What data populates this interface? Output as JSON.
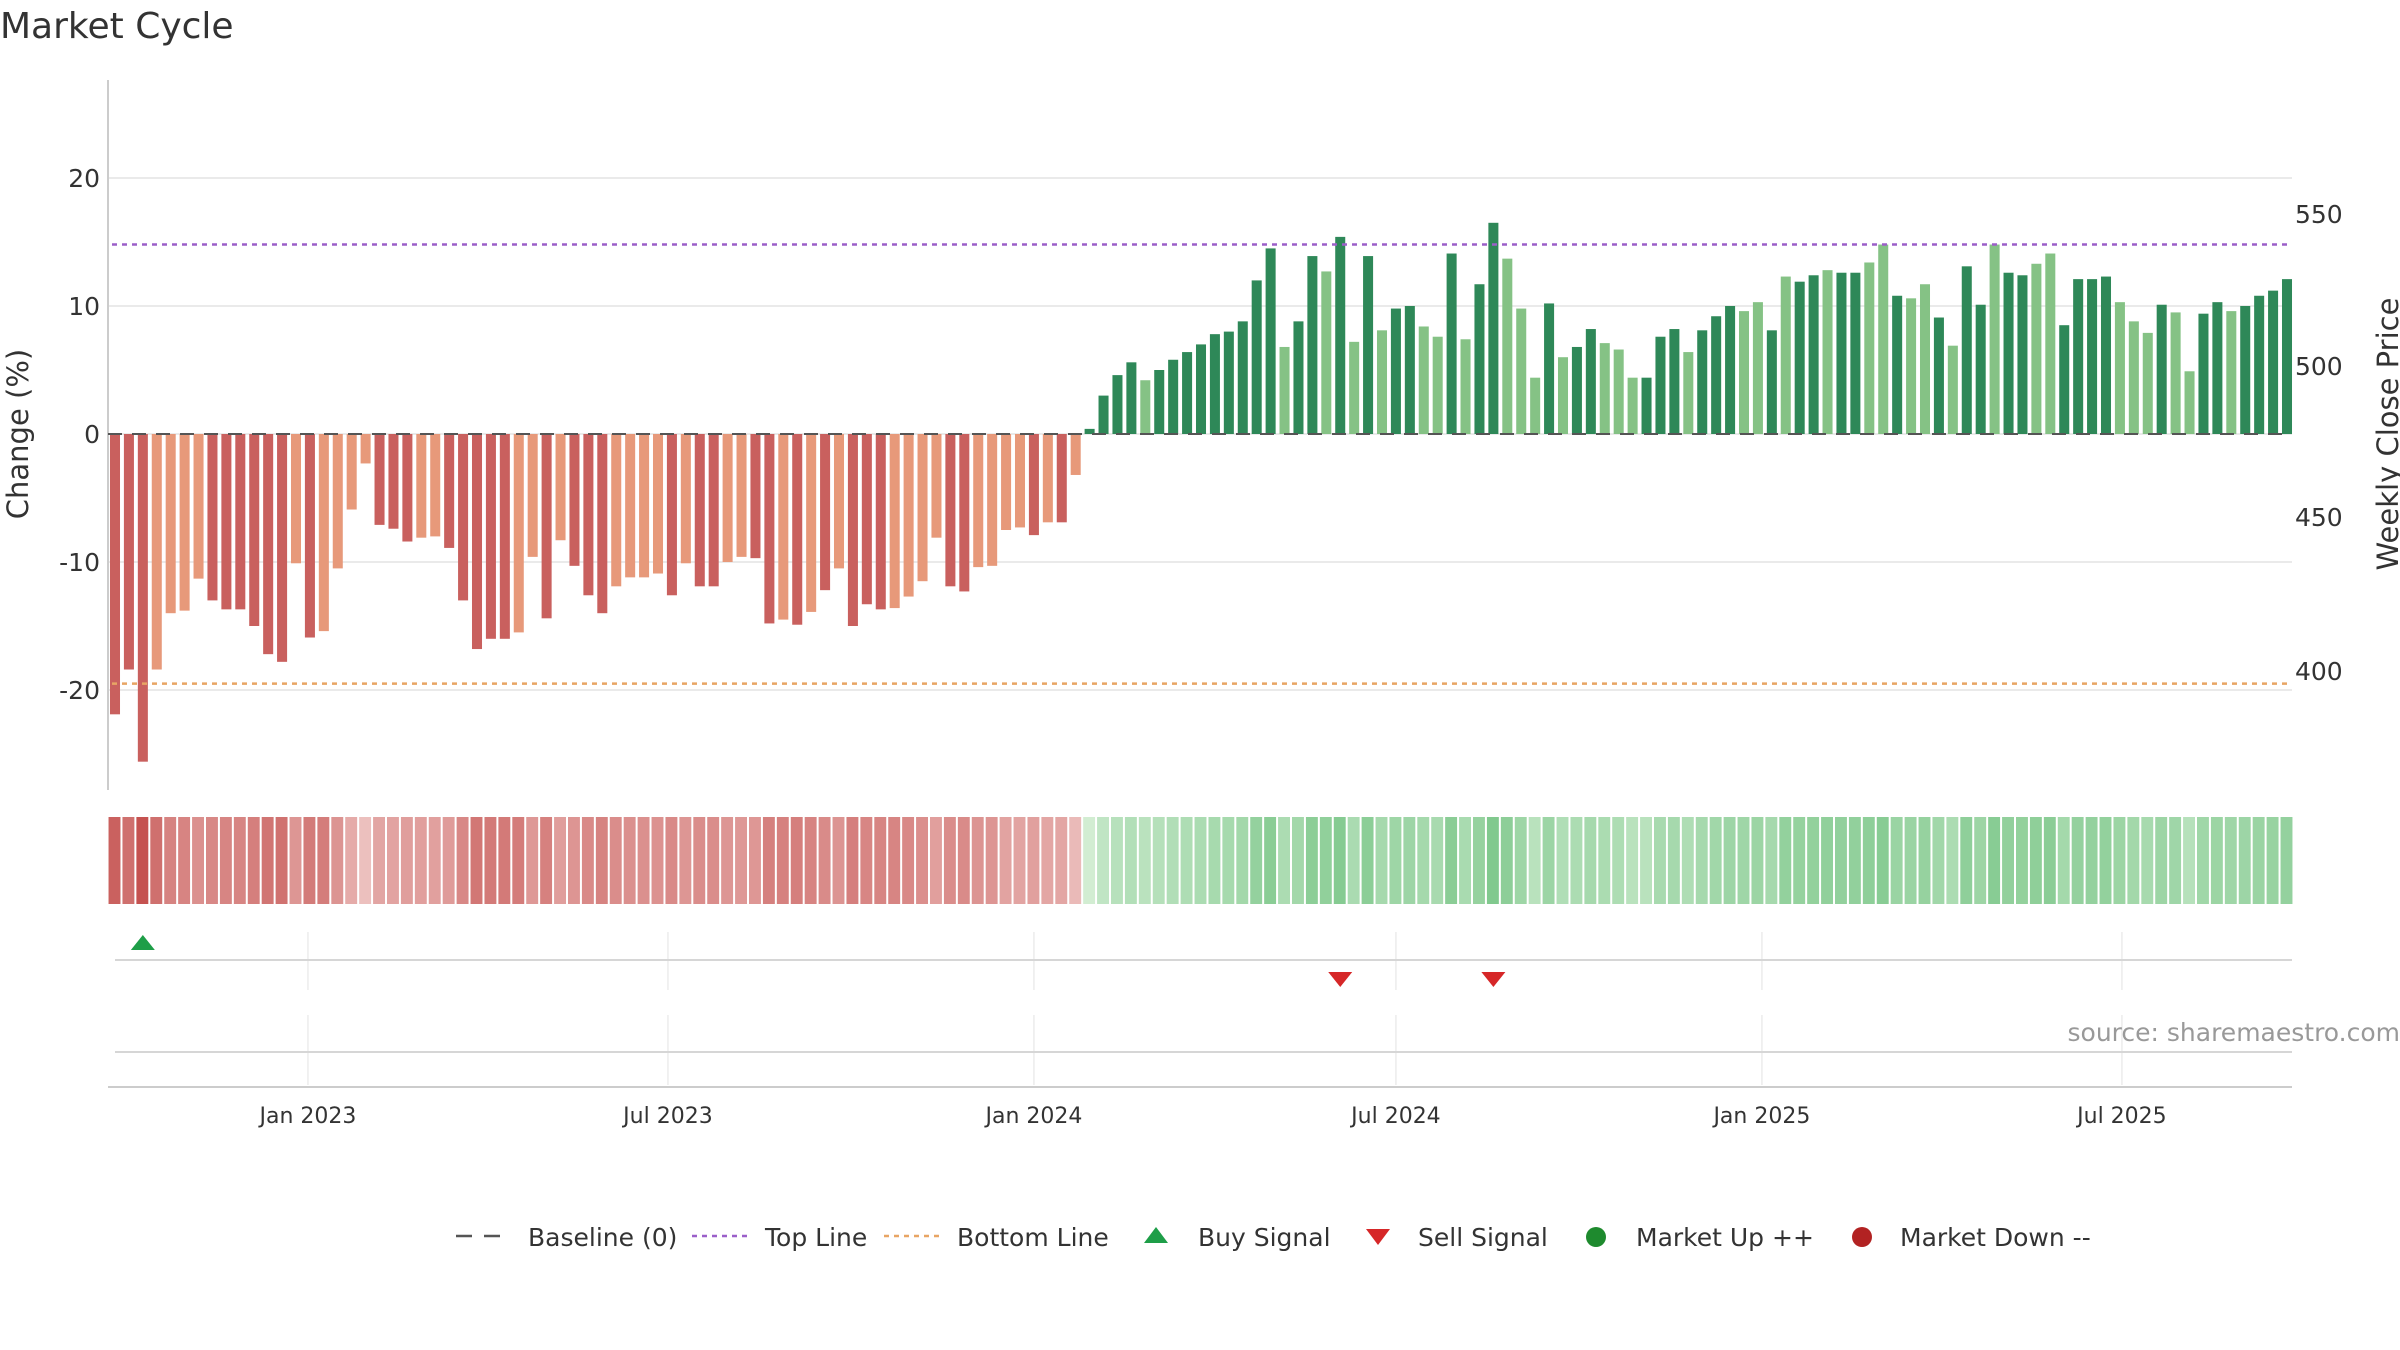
{
  "title": "Market Cycle",
  "source": "source: sharemaestro.com",
  "colors": {
    "down_dark": "#c9605e",
    "down_light": "#e7997a",
    "up_dark": "#2e8858",
    "up_light": "#85c285",
    "top_line": "#9b5fc9",
    "bottom_line": "#e8a564",
    "baseline": "#555555",
    "buy": "#1e9e48",
    "sell": "#d62728",
    "market_up": "#1e8a2e",
    "market_down": "#b22222"
  },
  "chart_data": {
    "type": "bar",
    "title": "Market Cycle",
    "ylabel": "Change (%)",
    "y2label": "Weekly Close Price",
    "ylim": [
      -27.5,
      28
    ],
    "y_ticks": [
      -20,
      -10,
      0,
      10,
      20
    ],
    "y2_ticks": [
      400,
      450,
      500,
      550
    ],
    "y2_tick_values_at_change": [
      -18.5,
      -6.5,
      5.3,
      17.2
    ],
    "top_line": 14.8,
    "bottom_line": -19.5,
    "x_start": "2022-09-26",
    "x_tick_labels": [
      "Jan 2023",
      "Jul 2023",
      "Jan 2024",
      "Jul 2024",
      "Jan 2025",
      "Jul 2025"
    ],
    "x_tick_dates": [
      "2023-01-01",
      "2023-07-01",
      "2024-01-01",
      "2024-07-01",
      "2025-01-01",
      "2025-07-01"
    ],
    "values": [
      -21.9,
      -18.4,
      -25.6,
      -18.4,
      -14.0,
      -13.8,
      -11.3,
      -13.0,
      -13.7,
      -13.7,
      -15.0,
      -17.2,
      -17.8,
      -10.1,
      -15.9,
      -15.4,
      -10.5,
      -5.9,
      -2.3,
      -7.1,
      -7.4,
      -8.4,
      -8.1,
      -8.0,
      -8.9,
      -13.0,
      -16.8,
      -16.0,
      -16.0,
      -15.5,
      -9.6,
      -14.4,
      -8.3,
      -10.3,
      -12.6,
      -14.0,
      -11.9,
      -11.2,
      -11.2,
      -10.9,
      -12.6,
      -10.1,
      -11.9,
      -11.9,
      -10.0,
      -9.6,
      -9.7,
      -14.8,
      -14.5,
      -14.9,
      -13.9,
      -12.2,
      -10.5,
      -15.0,
      -13.3,
      -13.7,
      -13.6,
      -12.7,
      -11.5,
      -8.1,
      -11.9,
      -12.3,
      -10.4,
      -10.3,
      -7.5,
      -7.3,
      -7.9,
      -6.9,
      -6.9,
      -3.2,
      0.4,
      3.0,
      4.6,
      5.6,
      4.2,
      5.0,
      5.8,
      6.4,
      7.0,
      7.8,
      8.0,
      8.8,
      12.0,
      14.5,
      6.8,
      8.8,
      13.9,
      12.7,
      15.4,
      7.2,
      13.9,
      8.1,
      9.8,
      10.0,
      8.4,
      7.6,
      14.1,
      7.4,
      11.7,
      16.5,
      13.7,
      9.8,
      4.4,
      10.2,
      6.0,
      6.8,
      8.2,
      7.1,
      6.6,
      4.4,
      4.4,
      7.6,
      8.2,
      6.4,
      8.1,
      9.2,
      10.0,
      9.6,
      10.3,
      8.1,
      12.3,
      11.9,
      12.4,
      12.8,
      12.6,
      12.6,
      13.4,
      14.8,
      10.8,
      10.6,
      11.7,
      9.1,
      6.9,
      13.1,
      10.1,
      14.8,
      12.6,
      12.4,
      13.3,
      14.1,
      8.5,
      12.1,
      12.1,
      12.3,
      10.3,
      8.8,
      7.9,
      10.1,
      9.5,
      4.9,
      9.4,
      10.3,
      9.6,
      10.0,
      10.8,
      11.2,
      12.1
    ],
    "bar_shade": [
      1,
      1,
      1,
      0,
      0,
      0,
      0,
      1,
      1,
      1,
      1,
      1,
      1,
      0,
      1,
      0,
      0,
      0,
      0,
      1,
      1,
      1,
      0,
      0,
      1,
      1,
      1,
      1,
      1,
      0,
      0,
      1,
      0,
      1,
      1,
      1,
      0,
      0,
      0,
      0,
      1,
      0,
      1,
      1,
      0,
      0,
      1,
      1,
      0,
      1,
      0,
      1,
      0,
      1,
      1,
      1,
      0,
      0,
      0,
      0,
      1,
      1,
      0,
      0,
      0,
      0,
      1,
      0,
      1,
      0,
      1,
      1,
      1,
      1,
      0,
      1,
      1,
      1,
      1,
      1,
      1,
      1,
      1,
      1,
      0,
      1,
      1,
      0,
      1,
      0,
      1,
      0,
      1,
      1,
      0,
      0,
      1,
      0,
      1,
      1,
      0,
      0,
      0,
      1,
      0,
      1,
      1,
      0,
      0,
      0,
      1,
      1,
      1,
      0,
      1,
      1,
      1,
      0,
      0,
      1,
      0,
      1,
      1,
      0,
      1,
      1,
      0,
      0,
      1,
      0,
      0,
      1,
      0,
      1,
      1,
      0,
      1,
      1,
      0,
      0,
      1,
      1,
      1,
      1,
      0,
      0,
      0,
      1,
      0,
      0,
      1,
      1,
      0,
      1,
      1,
      1,
      1
    ],
    "buy_signal_weeks": [
      2
    ],
    "sell_signal_weeks": [
      88,
      99
    ],
    "legend": [
      {
        "label": "Baseline (0)",
        "marker": "dash"
      },
      {
        "label": "Top Line",
        "marker": "dotted-purple"
      },
      {
        "label": "Bottom Line",
        "marker": "dotted-orange"
      },
      {
        "label": "Buy Signal",
        "marker": "triangle-up"
      },
      {
        "label": "Sell Signal",
        "marker": "triangle-down"
      },
      {
        "label": "Market Up ++",
        "marker": "circle-green"
      },
      {
        "label": "Market Down --",
        "marker": "circle-red"
      }
    ],
    "legend_position": "bottom",
    "grid": true
  }
}
